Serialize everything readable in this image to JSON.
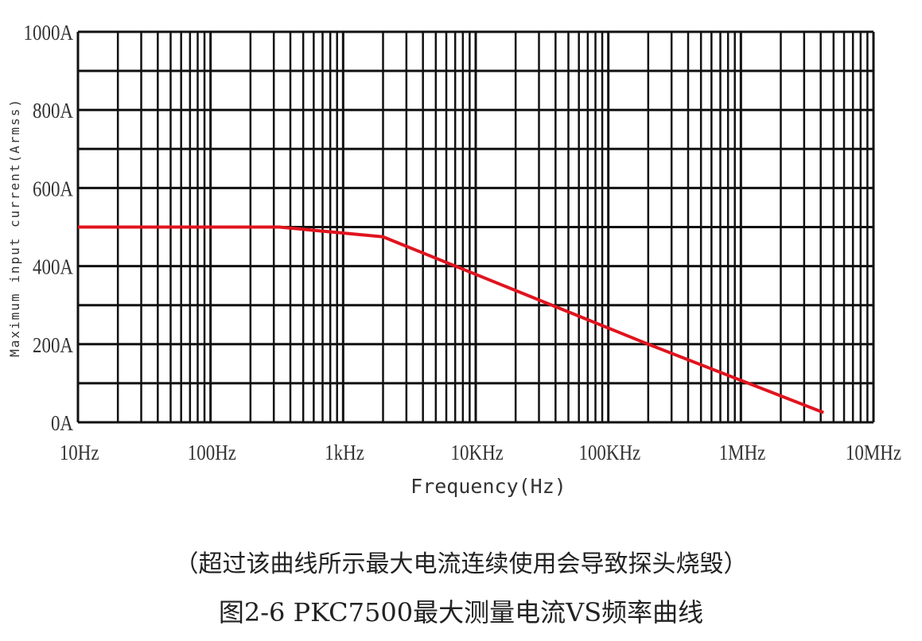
{
  "chart_data": {
    "type": "line",
    "title": "图2-6 PKC7500最大测量电流VS频率曲线",
    "note": "（超过该曲线所示最大电流连续使用会导致探头烧毁）",
    "xlabel": "Frequency(Hz)",
    "ylabel": "Maximum input current(Armss)",
    "x_scale": "log",
    "xlim": [
      10,
      10000000
    ],
    "ylim": [
      0,
      1000
    ],
    "x_ticks": [
      {
        "value": 10,
        "label": "10Hz"
      },
      {
        "value": 100,
        "label": "100Hz"
      },
      {
        "value": 1000,
        "label": "1kHz"
      },
      {
        "value": 10000,
        "label": "10KHz"
      },
      {
        "value": 100000,
        "label": "100KHz"
      },
      {
        "value": 1000000,
        "label": "1MHz"
      },
      {
        "value": 10000000,
        "label": "10MHz"
      }
    ],
    "y_ticks": [
      {
        "value": 0,
        "label": "0A"
      },
      {
        "value": 200,
        "label": "200A"
      },
      {
        "value": 400,
        "label": "400A"
      },
      {
        "value": 600,
        "label": "600A"
      },
      {
        "value": 800,
        "label": "800A"
      },
      {
        "value": 1000,
        "label": "1000A"
      }
    ],
    "grid": true,
    "series": [
      {
        "color": "#e0141e",
        "x": [
          10,
          330,
          2000,
          200000,
          4200000
        ],
        "y": [
          500,
          500,
          475,
          200,
          25
        ]
      }
    ]
  }
}
